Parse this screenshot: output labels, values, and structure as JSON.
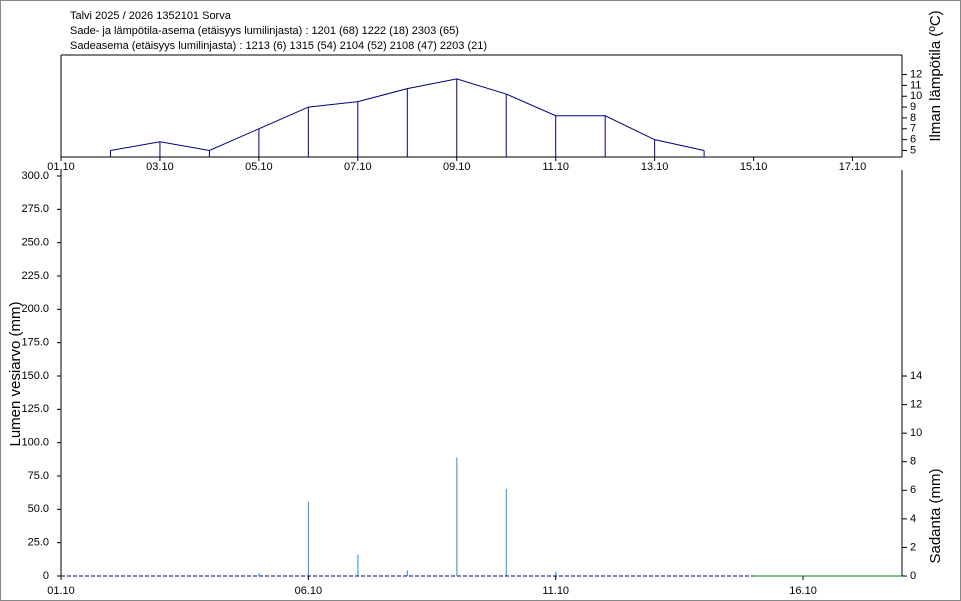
{
  "chart_data": [
    {
      "type": "line",
      "title": "Talvi 2025 / 2026 1352101 Sorva",
      "subtitles": [
        "Sade- ja lämpötila-asema (etäisyys lumilinjasta) :  1201 (68) 1222 (18) 2303 (65)",
        "Sadeasema (etäisyys lumilinjasta) :  1213 (6) 1315 (54) 2104 (52) 2108 (47) 2203 (21)"
      ],
      "y_label": "Ilman lämpötila (ºC)",
      "x": [
        2,
        3,
        4,
        5,
        6,
        7,
        8,
        9,
        10,
        11,
        12,
        13,
        14
      ],
      "series": [
        {
          "color": "#000080",
          "values": [
            5,
            5.8,
            5,
            7,
            9,
            9.5,
            10.7,
            11.6,
            10.2,
            8.2,
            8.2,
            6,
            5
          ]
        }
      ],
      "xlim": [
        1,
        18
      ],
      "xticks": [
        {
          "value": 1,
          "label": "01.10"
        },
        {
          "value": 3,
          "label": "03.10"
        },
        {
          "value": 5,
          "label": "05.10"
        },
        {
          "value": 7,
          "label": "07.10"
        },
        {
          "value": 9,
          "label": "09.10"
        },
        {
          "value": 11,
          "label": "11.10"
        },
        {
          "value": 13,
          "label": "13.10"
        },
        {
          "value": 15,
          "label": "15.10"
        },
        {
          "value": 17,
          "label": "17.10"
        }
      ],
      "ylim": [
        4.4,
        13.8
      ],
      "yticks": [
        5,
        6,
        7,
        8,
        9,
        10,
        11,
        12
      ]
    },
    {
      "type": "combo",
      "y_label": "Lumen vesiarvo (mm)",
      "y2_label": "Sadanta (mm)",
      "x": [
        1,
        2,
        3,
        4,
        5,
        6,
        7,
        8,
        9,
        10,
        11,
        12,
        13,
        14,
        15,
        16,
        17,
        18
      ],
      "series": [
        {
          "type": "bar",
          "axis": "y2",
          "color": "#4a9fe0",
          "values": [
            0,
            0,
            0,
            0,
            0.2,
            5.2,
            1.5,
            0.4,
            8.3,
            6.1,
            0.3,
            0,
            0,
            0,
            null,
            null,
            null,
            null
          ]
        },
        {
          "type": "line",
          "color": "#000080",
          "dashed": true,
          "values": [
            0,
            0,
            0,
            0,
            0,
            0,
            0,
            0,
            0,
            0,
            0,
            0,
            0,
            0,
            0,
            null,
            null,
            null
          ]
        },
        {
          "type": "line",
          "color": "#008000",
          "values": [
            null,
            null,
            null,
            null,
            null,
            null,
            null,
            null,
            null,
            null,
            null,
            null,
            null,
            null,
            0,
            0,
            0,
            0
          ]
        }
      ],
      "xlim": [
        1,
        18
      ],
      "xticks": [
        {
          "value": 1,
          "label": "01.10"
        },
        {
          "value": 6,
          "label": "06.10"
        },
        {
          "value": 11,
          "label": "11.10"
        },
        {
          "value": 16,
          "label": "16.10"
        }
      ],
      "ylim": [
        0,
        300
      ],
      "yticks": [
        0,
        {
          "value": 25,
          "label": "25.0"
        },
        {
          "value": 50,
          "label": "50.0"
        },
        {
          "value": 75,
          "label": "75.0"
        },
        {
          "value": 100,
          "label": "100.0"
        },
        {
          "value": 125,
          "label": "125.0"
        },
        {
          "value": 150,
          "label": "150.0"
        },
        {
          "value": 175,
          "label": "175.0"
        },
        {
          "value": 200,
          "label": "200.0"
        },
        {
          "value": 225,
          "label": "225.0"
        },
        {
          "value": 250,
          "label": "250.0"
        },
        {
          "value": 275,
          "label": "275.0"
        },
        {
          "value": 300,
          "label": "300.0"
        }
      ],
      "y2lim": [
        0,
        28
      ],
      "y2ticks": [
        0,
        2,
        4,
        6,
        8,
        10,
        12,
        14
      ]
    }
  ]
}
